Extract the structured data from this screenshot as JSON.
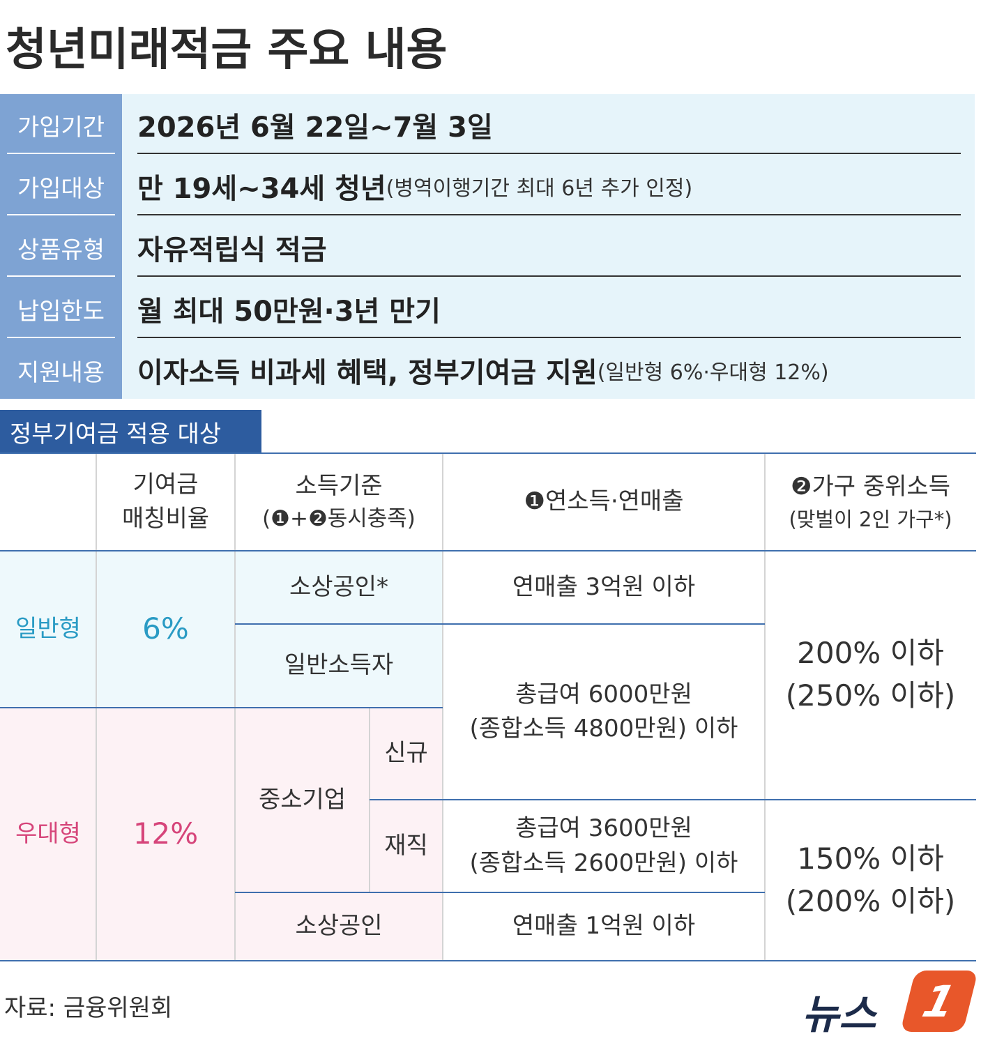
{
  "title": "청년미래적금 주요 내용",
  "summary": {
    "rows": [
      {
        "label": "가입기간",
        "text": "2026년 6월 22일~7월 3일"
      },
      {
        "label": "가입대상",
        "text": "만 19세~34세 청년",
        "note": "(병역이행기간 최대 6년 추가 인정)"
      },
      {
        "label": "상품유형",
        "text": "자유적립식 적금"
      },
      {
        "label": "납입한도",
        "text": "월 최대 50만원·3년 만기"
      },
      {
        "label": "지원내용",
        "text": "이자소득 비과세 혜택, 정부기여금 지원",
        "note": "(일반형 6%·우대형 12%)"
      }
    ]
  },
  "section_title": "정부기여금 적용 대상",
  "table": {
    "header": {
      "ratio": [
        "기여금",
        "매칭비율"
      ],
      "criteria": [
        "소득기준",
        "(❶+❷동시충족)"
      ],
      "income": "❶연소득·연매출",
      "household": [
        "❷가구 중위소득",
        "(맞벌이 2인 가구*)"
      ]
    },
    "general": {
      "type": "일반형",
      "ratio": "6%",
      "small_business": "소상공인*",
      "small_business_sales": "연매출 3억원 이하",
      "general_earner": "일반소득자",
      "salary": [
        "총급여 6000만원",
        "(종합소득 4800만원) 이하"
      ],
      "household": [
        "200% 이하",
        "(250% 이하)"
      ]
    },
    "preferred": {
      "type": "우대형",
      "ratio": "12%",
      "sme": "중소기업",
      "new": "신규",
      "employed": "재직",
      "salary": [
        "총급여 3600만원",
        "(종합소득 2600만원) 이하"
      ],
      "small_business": "소상공인",
      "small_business_sales": "연매출 1억원 이하",
      "household": [
        "150% 이하",
        "(200% 이하)"
      ]
    }
  },
  "source": "자료: 금융위원회",
  "logo": {
    "text": "뉴스",
    "number": "1"
  }
}
